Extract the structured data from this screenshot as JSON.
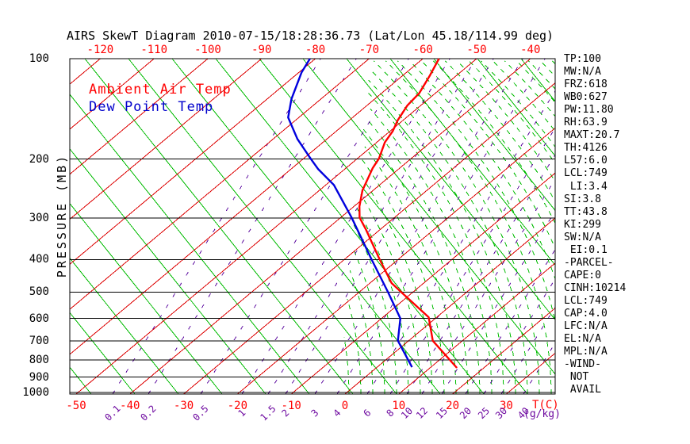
{
  "title": "AIRS SkewT Diagram 2010-07-15/18:28:36.73 (Lat/Lon 45.18/114.99 deg)",
  "legend": {
    "ambient": "Ambient Air Temp",
    "dewpoint": "Dew Point Temp"
  },
  "axes": {
    "y_label": "PRESSURE (MB)",
    "x_unit": "T(C)",
    "mixing_ratio_unit": "(g/kg)",
    "pressure_ticks": [
      100,
      200,
      300,
      400,
      500,
      600,
      700,
      800,
      900,
      1000
    ],
    "top_temp_labels": [
      -120,
      -110,
      -100,
      -90,
      -80,
      -70,
      -60,
      -50,
      -40
    ],
    "bottom_temp_labels": [
      -50,
      -40,
      -30,
      -20,
      -10,
      0,
      10,
      20,
      30
    ],
    "mixing_ratio_labels": [
      "0.1",
      "0.2",
      "0.5",
      "1",
      "1.5",
      "2",
      "3",
      "4",
      "6",
      "8",
      "10",
      "12",
      "15",
      "20",
      "25",
      "30",
      "40"
    ]
  },
  "stats_panel": [
    "TP:100",
    "MW:N/A",
    "FRZ:618",
    "WB0:627",
    "PW:11.80",
    "RH:63.9",
    "MAXT:20.7",
    "TH:4126",
    "L57:6.0",
    "LCL:749",
    " LI:3.4",
    "SI:3.8",
    "TT:43.8",
    "KI:299",
    "SW:N/A",
    " EI:0.1",
    "-PARCEL-",
    "CAPE:0",
    "CINH:10214",
    "LCL:749",
    "CAP:4.0",
    "LFC:N/A",
    "EL:N/A",
    "MPL:N/A",
    "-WIND-",
    " NOT",
    " AVAIL"
  ],
  "colors": {
    "ambient_line": "#ff0000",
    "dewpoint_line": "#0000dd",
    "isotherm": "#dd0000",
    "adiabat_green": "#00bb00",
    "mixing_purple": "#5e0da0",
    "axis_black": "#000000"
  },
  "chart_data": {
    "type": "line",
    "title": "AIRS SkewT Diagram 2010-07-15/18:28:36.73 (Lat/Lon 45.18/114.99 deg)",
    "xlabel": "T(C)",
    "ylabel": "PRESSURE (MB)",
    "y_axis": {
      "scale": "log",
      "min": 100,
      "max": 1000,
      "ticks": [
        100,
        200,
        300,
        400,
        500,
        600,
        700,
        800,
        900,
        1000
      ]
    },
    "x_axis": {
      "surface_ticks_c": [
        -50,
        -40,
        -30,
        -20,
        -10,
        0,
        10,
        20,
        30
      ],
      "skewed": true
    },
    "series": [
      {
        "name": "Ambient Air Temp",
        "units": {
          "p": "mb",
          "t": "C"
        },
        "points": [
          {
            "p": 100,
            "t": -57
          },
          {
            "p": 112,
            "t": -55
          },
          {
            "p": 127,
            "t": -53
          },
          {
            "p": 138,
            "t": -52.5
          },
          {
            "p": 153,
            "t": -51
          },
          {
            "p": 165,
            "t": -49.5
          },
          {
            "p": 178,
            "t": -48.5
          },
          {
            "p": 199,
            "t": -46
          },
          {
            "p": 213,
            "t": -45
          },
          {
            "p": 248,
            "t": -42
          },
          {
            "p": 277,
            "t": -39
          },
          {
            "p": 299,
            "t": -36.5
          },
          {
            "p": 326,
            "t": -32.5
          },
          {
            "p": 399,
            "t": -23.5
          },
          {
            "p": 470,
            "t": -16
          },
          {
            "p": 502,
            "t": -12
          },
          {
            "p": 595,
            "t": -1.5
          },
          {
            "p": 700,
            "t": 4.5
          },
          {
            "p": 844,
            "t": 15
          }
        ]
      },
      {
        "name": "Dew Point Temp",
        "units": {
          "p": "mb",
          "t": "C"
        },
        "points": [
          {
            "p": 100,
            "t": -81
          },
          {
            "p": 110,
            "t": -79.5
          },
          {
            "p": 132,
            "t": -75.5
          },
          {
            "p": 150,
            "t": -72
          },
          {
            "p": 174,
            "t": -65.5
          },
          {
            "p": 200,
            "t": -58.5
          },
          {
            "p": 214,
            "t": -55
          },
          {
            "p": 239,
            "t": -48.5
          },
          {
            "p": 299,
            "t": -38
          },
          {
            "p": 399,
            "t": -25
          },
          {
            "p": 502,
            "t": -14.5
          },
          {
            "p": 600,
            "t": -6.5
          },
          {
            "p": 700,
            "t": -2
          },
          {
            "p": 840,
            "t": 6.5
          }
        ]
      }
    ],
    "background_lines": {
      "isotherms_c": {
        "from": -160,
        "to": 40,
        "step": 10,
        "style": "solid red"
      },
      "dry_adiabats": "solid green, slope up-left",
      "moist_adiabats": "dashed green, curved, right half",
      "mixing_ratio_g_kg": [
        "0.1",
        "0.2",
        "0.5",
        "1",
        "1.5",
        "2",
        "3",
        "4",
        "6",
        "8",
        "10",
        "12",
        "15",
        "20",
        "25",
        "30",
        "40"
      ]
    },
    "annotations": [
      "TP:100",
      "MW:N/A",
      "FRZ:618",
      "WB0:627",
      "PW:11.80",
      "RH:63.9",
      "MAXT:20.7",
      "TH:4126",
      "L57:6.0",
      "LCL:749",
      "LI:3.4",
      "SI:3.8",
      "TT:43.8",
      "KI:299",
      "SW:N/A",
      "EI:0.1",
      "-PARCEL-",
      "CAPE:0",
      "CINH:10214",
      "LCL:749",
      "CAP:4.0",
      "LFC:N/A",
      "EL:N/A",
      "MPL:N/A",
      "-WIND-",
      "NOT",
      "AVAIL"
    ]
  }
}
